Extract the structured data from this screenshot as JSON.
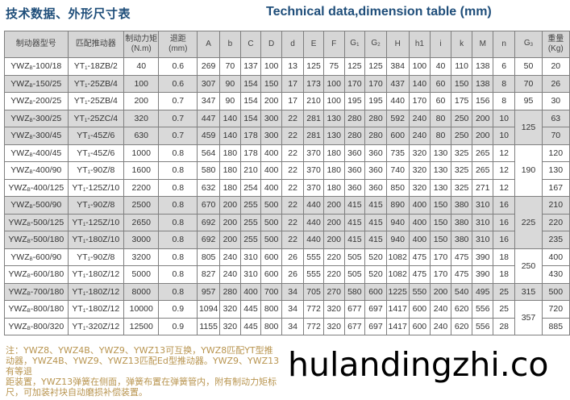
{
  "title_cn": "技术数据、外形尺寸表",
  "title_en": "Technical data,dimension table (mm)",
  "headers": [
    "制动器型号",
    "匹配推动器",
    "制动力矩\n(N.m)",
    "退距\n(mm)",
    "A",
    "b",
    "C",
    "D",
    "d",
    "E",
    "F",
    [
      "G",
      "1"
    ],
    [
      "G",
      "2"
    ],
    "H",
    "h1",
    "i",
    "k",
    "M",
    "n",
    [
      "G",
      "3"
    ],
    "重量\n(Kg)"
  ],
  "rows": [
    {
      "model": [
        "YWZ",
        "B",
        "-100/18"
      ],
      "pusher": [
        "YT",
        "1",
        "-18ZB/2"
      ],
      "v": [
        "40",
        "0.6",
        "269",
        "70",
        "137",
        "100",
        "13",
        "125",
        "75",
        "125",
        "125",
        "384",
        "100",
        "40",
        "110",
        "138",
        "6"
      ],
      "weight": "20"
    },
    {
      "model": [
        "YWZ",
        "B",
        "-150/25"
      ],
      "pusher": [
        "YT",
        "1",
        "-25ZB/4"
      ],
      "v": [
        "100",
        "0.6",
        "307",
        "90",
        "154",
        "150",
        "17",
        "173",
        "100",
        "170",
        "170",
        "437",
        "140",
        "60",
        "150",
        "138",
        "8"
      ],
      "weight": "26"
    },
    {
      "model": [
        "YWZ",
        "B",
        "-200/25"
      ],
      "pusher": [
        "YT",
        "1",
        "-25ZB/4"
      ],
      "v": [
        "200",
        "0.7",
        "347",
        "90",
        "154",
        "200",
        "17",
        "210",
        "100",
        "195",
        "195",
        "440",
        "170",
        "60",
        "175",
        "156",
        "8"
      ],
      "weight": "30"
    },
    {
      "model": [
        "YWZ",
        "B",
        "-300/25"
      ],
      "pusher": [
        "YT",
        "1",
        "-25ZC/4"
      ],
      "v": [
        "320",
        "0.7",
        "447",
        "140",
        "154",
        "300",
        "22",
        "281",
        "130",
        "280",
        "280",
        "592",
        "240",
        "80",
        "250",
        "200",
        "10"
      ],
      "weight": "63"
    },
    {
      "model": [
        "YWZ",
        "B",
        "-300/45"
      ],
      "pusher": [
        "YT",
        "1",
        "-45Z/6"
      ],
      "v": [
        "630",
        "0.7",
        "459",
        "140",
        "178",
        "300",
        "22",
        "281",
        "130",
        "280",
        "280",
        "600",
        "240",
        "80",
        "250",
        "200",
        "10"
      ],
      "weight": "70"
    },
    {
      "model": [
        "YWZ",
        "B",
        "-400/45"
      ],
      "pusher": [
        "YT",
        "1",
        "-45Z/6"
      ],
      "v": [
        "1000",
        "0.8",
        "564",
        "180",
        "178",
        "400",
        "22",
        "370",
        "180",
        "360",
        "360",
        "735",
        "320",
        "130",
        "325",
        "265",
        "12"
      ],
      "weight": "120"
    },
    {
      "model": [
        "YWZ",
        "B",
        "-400/90"
      ],
      "pusher": [
        "YT",
        "1",
        "-90Z/8"
      ],
      "v": [
        "1600",
        "0.8",
        "580",
        "180",
        "210",
        "400",
        "22",
        "370",
        "180",
        "360",
        "360",
        "740",
        "320",
        "130",
        "325",
        "265",
        "12"
      ],
      "weight": "130"
    },
    {
      "model": [
        "YWZ",
        "B",
        "-400/125"
      ],
      "pusher": [
        "YT",
        "1",
        "-125Z/10"
      ],
      "v": [
        "2200",
        "0.8",
        "632",
        "180",
        "254",
        "400",
        "22",
        "370",
        "180",
        "360",
        "360",
        "850",
        "320",
        "130",
        "325",
        "271",
        "12"
      ],
      "weight": "167"
    },
    {
      "model": [
        "YWZ",
        "B",
        "-500/90"
      ],
      "pusher": [
        "YT",
        "1",
        "-90Z/8"
      ],
      "v": [
        "2500",
        "0.8",
        "670",
        "200",
        "255",
        "500",
        "22",
        "440",
        "200",
        "415",
        "415",
        "890",
        "400",
        "150",
        "380",
        "310",
        "16"
      ],
      "weight": "210"
    },
    {
      "model": [
        "YWZ",
        "B",
        "-500/125"
      ],
      "pusher": [
        "YT",
        "1",
        "-125Z/10"
      ],
      "v": [
        "2650",
        "0.8",
        "692",
        "200",
        "255",
        "500",
        "22",
        "440",
        "200",
        "415",
        "415",
        "940",
        "400",
        "150",
        "380",
        "310",
        "16"
      ],
      "weight": "220"
    },
    {
      "model": [
        "YWZ",
        "B",
        "-500/180"
      ],
      "pusher": [
        "YT",
        "1",
        "-180Z/10"
      ],
      "v": [
        "3000",
        "0.8",
        "692",
        "200",
        "255",
        "500",
        "22",
        "440",
        "200",
        "415",
        "415",
        "940",
        "400",
        "150",
        "380",
        "310",
        "16"
      ],
      "weight": "235"
    },
    {
      "model": [
        "YWZ",
        "B",
        "-600/90"
      ],
      "pusher": [
        "YT",
        "1",
        "-90Z/8"
      ],
      "v": [
        "3200",
        "0.8",
        "805",
        "240",
        "310",
        "600",
        "26",
        "555",
        "220",
        "505",
        "520",
        "1082",
        "475",
        "170",
        "475",
        "390",
        "18"
      ],
      "weight": "400"
    },
    {
      "model": [
        "YWZ",
        "B",
        "-600/180"
      ],
      "pusher": [
        "YT",
        "1",
        "-180Z/12"
      ],
      "v": [
        "5000",
        "0.8",
        "827",
        "240",
        "310",
        "600",
        "26",
        "555",
        "220",
        "505",
        "520",
        "1082",
        "475",
        "170",
        "475",
        "390",
        "18"
      ],
      "weight": "430"
    },
    {
      "model": [
        "YWZ",
        "B",
        "-700/180"
      ],
      "pusher": [
        "YT",
        "1",
        "-180Z/12"
      ],
      "v": [
        "8000",
        "0.8",
        "957",
        "280",
        "400",
        "700",
        "34",
        "705",
        "270",
        "580",
        "600",
        "1225",
        "550",
        "200",
        "540",
        "495",
        "25"
      ],
      "weight": "500"
    },
    {
      "model": [
        "YWZ",
        "B",
        "-800/180"
      ],
      "pusher": [
        "YT",
        "1",
        "-180Z/12"
      ],
      "v": [
        "10000",
        "0.9",
        "1094",
        "320",
        "445",
        "800",
        "34",
        "772",
        "320",
        "677",
        "697",
        "1417",
        "600",
        "240",
        "620",
        "556",
        "25"
      ],
      "weight": "720"
    },
    {
      "model": [
        "YWZ",
        "B",
        "-800/320"
      ],
      "pusher": [
        "YT",
        "1",
        "-320Z/12"
      ],
      "v": [
        "12500",
        "0.9",
        "1155",
        "320",
        "445",
        "800",
        "34",
        "772",
        "320",
        "677",
        "697",
        "1417",
        "600",
        "240",
        "620",
        "556",
        "28"
      ],
      "weight": "885"
    }
  ],
  "g3_groups": [
    {
      "value": "50",
      "span": 1,
      "shade": "w"
    },
    {
      "value": "70",
      "span": 1,
      "shade": "g"
    },
    {
      "value": "95",
      "span": 1,
      "shade": "w"
    },
    {
      "value": "125",
      "span": 2,
      "shade": "g"
    },
    {
      "value": "190",
      "span": 3,
      "shade": "w"
    },
    {
      "value": "225",
      "span": 3,
      "shade": "g"
    },
    {
      "value": "250",
      "span": 2,
      "shade": "w"
    },
    {
      "value": "315",
      "span": 1,
      "shade": "g"
    },
    {
      "value": "357",
      "span": 2,
      "shade": "w"
    }
  ],
  "notes": {
    "label": "注：",
    "line1": "YWZ8、YWZ4B、YWZ9、YWZ13可互换，YWZ8匹配YT型推动器，YWZ4B、YWZ9、YWZ13匹配Ed型推动器。YWZ9、YWZ13有等退",
    "line2": "距装置，YWZ13弹簧在侧面，弹簧布置在弹簧管内，附有制动力矩标尺，可加装衬块自动磨损补偿装置。"
  },
  "watermark": "hulandingzhi.co",
  "colors": {
    "title": "#1f4e7a",
    "header_bg": "#d6d6d6",
    "shade": "#d9d9d9",
    "note": "#b8944f"
  }
}
